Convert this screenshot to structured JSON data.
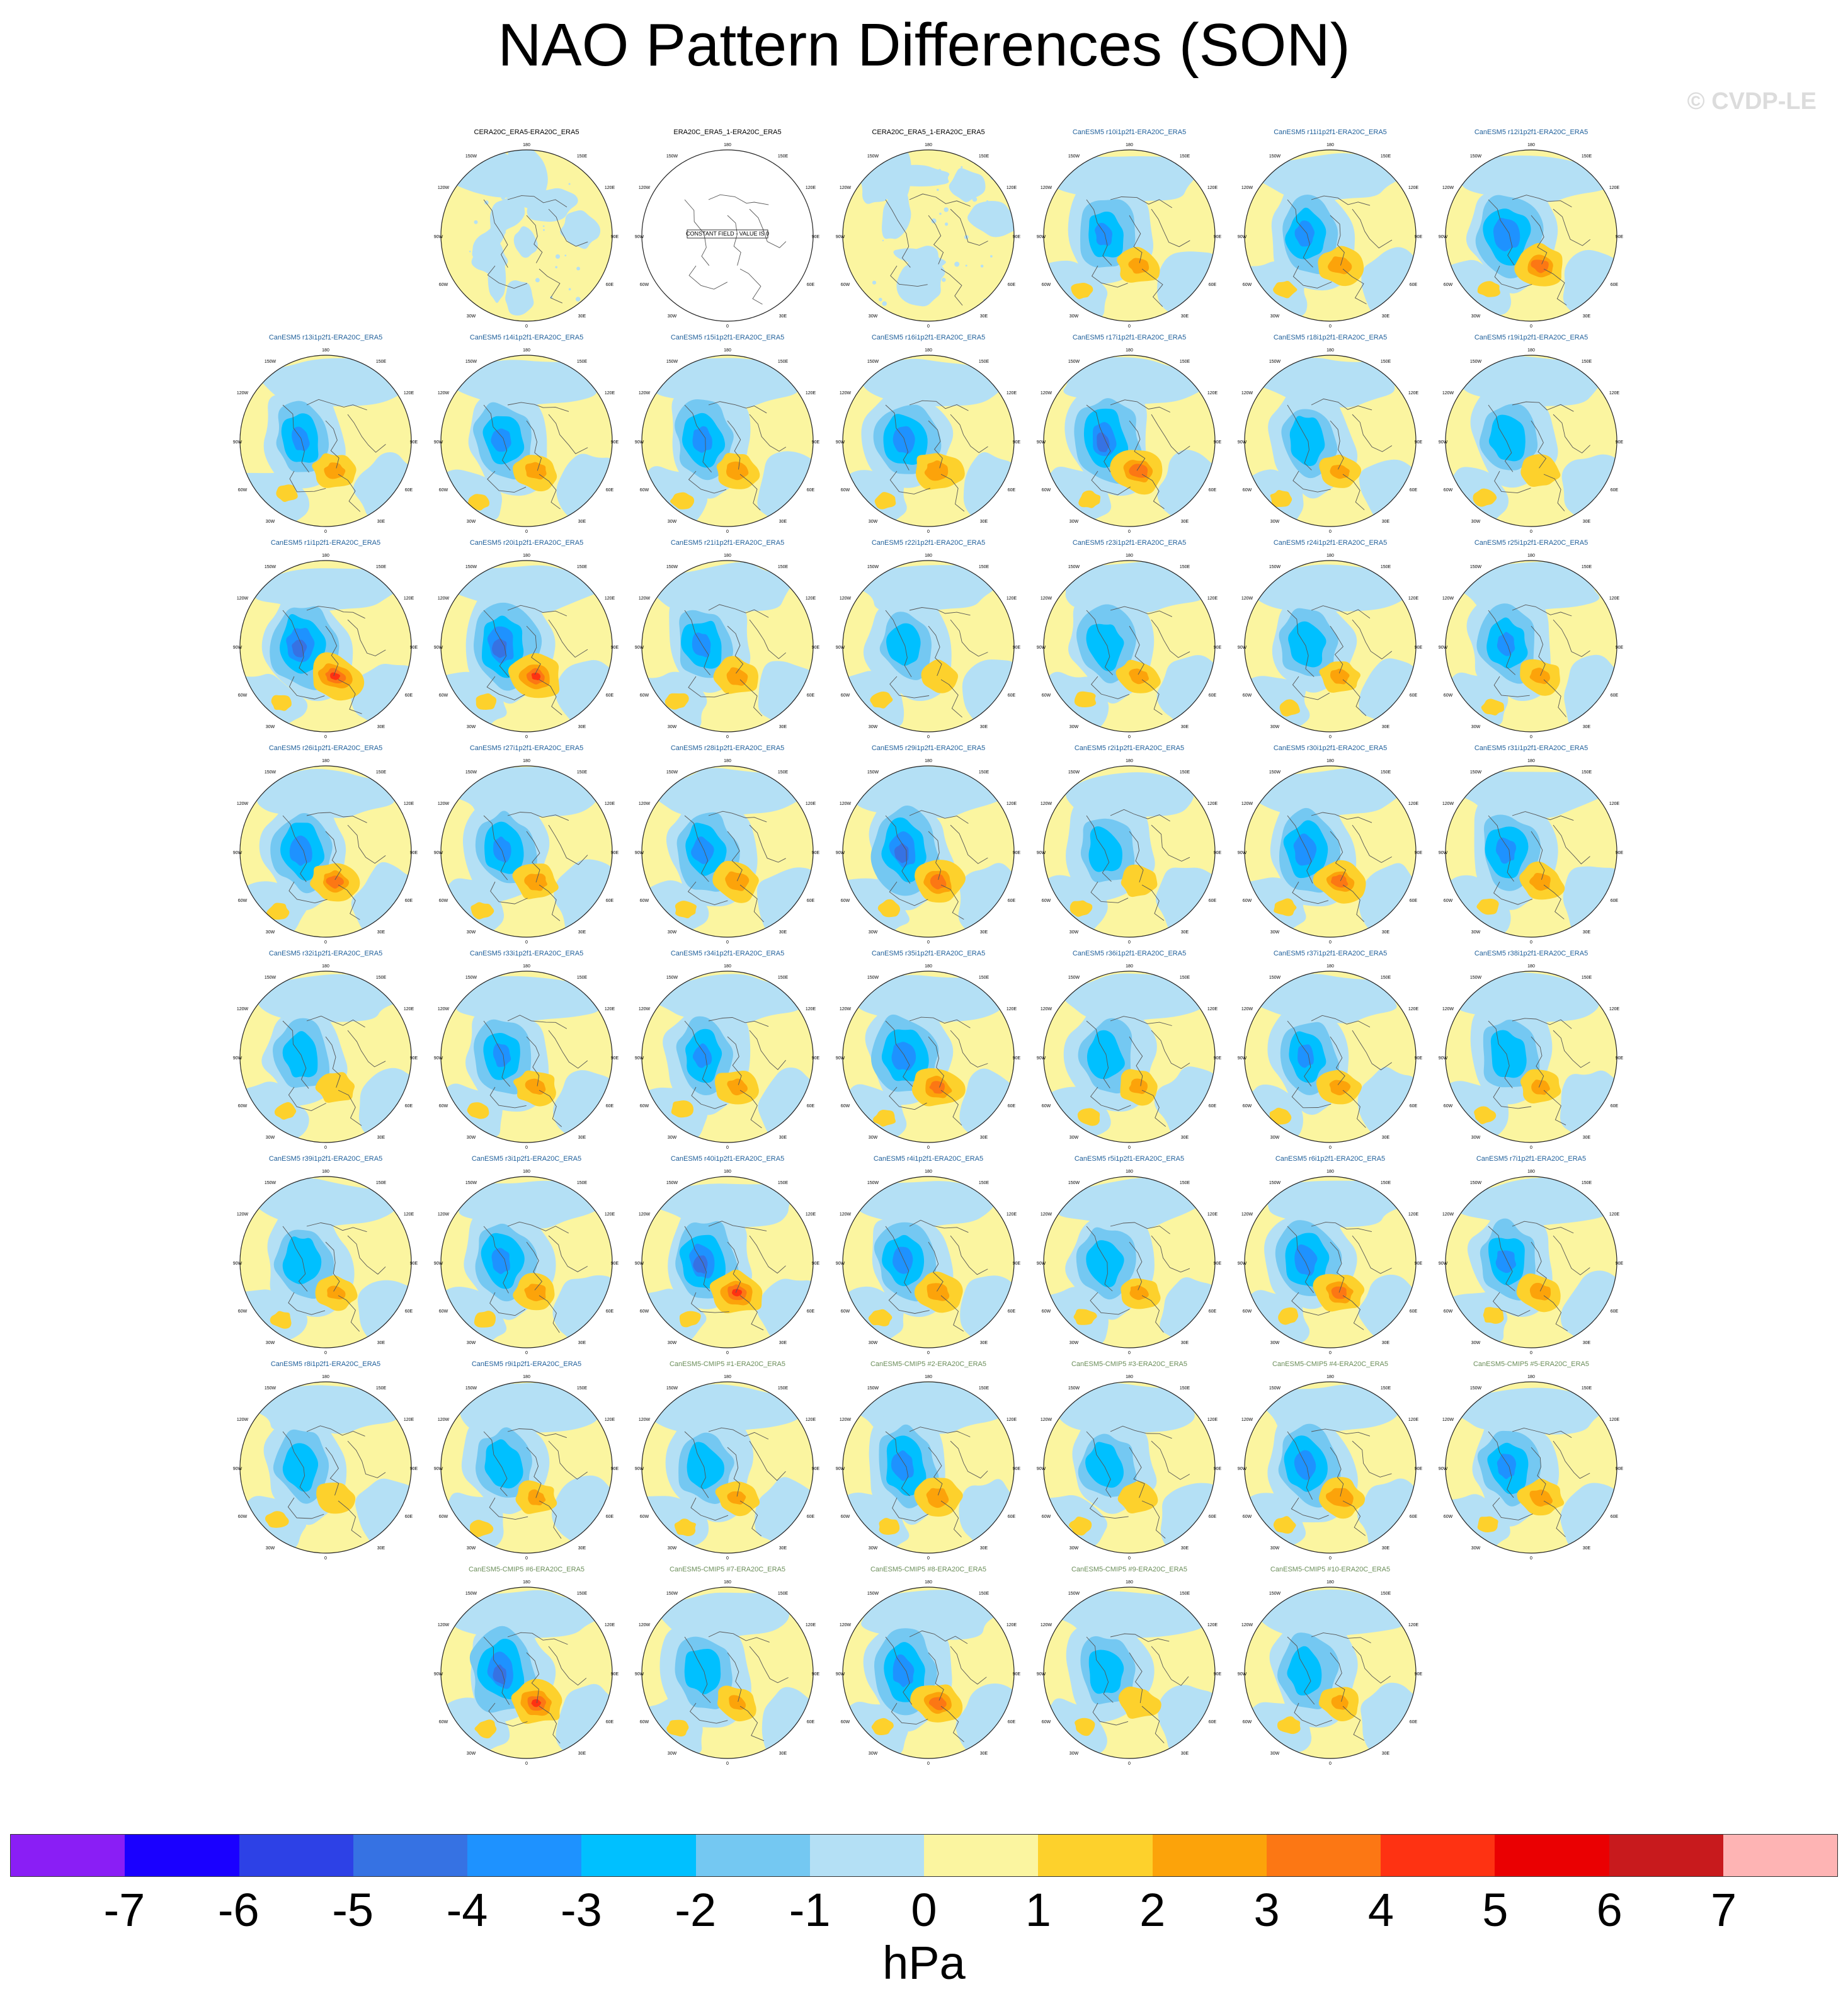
{
  "title": "NAO Pattern Differences (SON)",
  "watermark": "© CVDP-LE",
  "units": "hPa",
  "colorbar": {
    "labels": [
      "-7",
      "-6",
      "-5",
      "-4",
      "-3",
      "-2",
      "-1",
      "0",
      "1",
      "2",
      "3",
      "4",
      "5",
      "6",
      "7"
    ],
    "colors": [
      "#8a1ef5",
      "#1a00ff",
      "#2d41e6",
      "#3672e3",
      "#1e92ff",
      "#00c0ff",
      "#74c8f2",
      "#b4e0f5",
      "#fbf5a0",
      "#fdd12c",
      "#fca30a",
      "#fc7714",
      "#fe3212",
      "#ea0002",
      "#c81a1d",
      "#feb4b4"
    ]
  },
  "map_labels": {
    "top": "180",
    "tl": "150W",
    "tr": "150E",
    "ul": "120W",
    "ur": "120E",
    "ml": "90W",
    "mr": "90E",
    "ll": "60W",
    "lr": "60E",
    "bl": "30W",
    "br": "30E",
    "bottom": "0"
  },
  "constant_field_note": "CONSTANT FIELD - VALUE IS 0",
  "panels": [
    {
      "title": "CERA20C_ERA5-ERA20C_ERA5",
      "color": "#000000",
      "type": "weak",
      "k": 0.1
    },
    {
      "title": "ERA20C_ERA5_1-ERA20C_ERA5",
      "color": "#000000",
      "type": "constant",
      "k": 0
    },
    {
      "title": "CERA20C_ERA5_1-ERA20C_ERA5",
      "color": "#000000",
      "type": "weak",
      "k": 0.1
    },
    {
      "title": "CanESM5 r10i1p2f1-ERA20C_ERA5",
      "color": "#1f5f9a",
      "type": "nao",
      "k": 0.65
    },
    {
      "title": "CanESM5 r11i1p2f1-ERA20C_ERA5",
      "color": "#1f5f9a",
      "type": "nao",
      "k": 0.7
    },
    {
      "title": "CanESM5 r12i1p2f1-ERA20C_ERA5",
      "color": "#1f5f9a",
      "type": "nao",
      "k": 0.9
    },
    {
      "title": "CanESM5 r13i1p2f1-ERA20C_ERA5",
      "color": "#1f5f9a",
      "type": "nao",
      "k": 0.65
    },
    {
      "title": "CanESM5 r14i1p2f1-ERA20C_ERA5",
      "color": "#1f5f9a",
      "type": "nao",
      "k": 0.7
    },
    {
      "title": "CanESM5 r15i1p2f1-ERA20C_ERA5",
      "color": "#1f5f9a",
      "type": "nao",
      "k": 0.7
    },
    {
      "title": "CanESM5 r16i1p2f1-ERA20C_ERA5",
      "color": "#1f5f9a",
      "type": "nao",
      "k": 0.8
    },
    {
      "title": "CanESM5 r17i1p2f1-ERA20C_ERA5",
      "color": "#1f5f9a",
      "type": "nao",
      "k": 0.95
    },
    {
      "title": "CanESM5 r18i1p2f1-ERA20C_ERA5",
      "color": "#1f5f9a",
      "type": "nao",
      "k": 0.6
    },
    {
      "title": "CanESM5 r19i1p2f1-ERA20C_ERA5",
      "color": "#1f5f9a",
      "type": "nao",
      "k": 0.55
    },
    {
      "title": "CanESM5 r1i1p2f1-ERA20C_ERA5",
      "color": "#1f5f9a",
      "type": "nao",
      "k": 1.0
    },
    {
      "title": "CanESM5 r20i1p2f1-ERA20C_ERA5",
      "color": "#1f5f9a",
      "type": "nao",
      "k": 1.0
    },
    {
      "title": "CanESM5 r21i1p2f1-ERA20C_ERA5",
      "color": "#1f5f9a",
      "type": "nao",
      "k": 0.7
    },
    {
      "title": "CanESM5 r22i1p2f1-ERA20C_ERA5",
      "color": "#1f5f9a",
      "type": "nao",
      "k": 0.45
    },
    {
      "title": "CanESM5 r23i1p2f1-ERA20C_ERA5",
      "color": "#1f5f9a",
      "type": "nao",
      "k": 0.6
    },
    {
      "title": "CanESM5 r24i1p2f1-ERA20C_ERA5",
      "color": "#1f5f9a",
      "type": "nao",
      "k": 0.6
    },
    {
      "title": "CanESM5 r25i1p2f1-ERA20C_ERA5",
      "color": "#1f5f9a",
      "type": "nao",
      "k": 0.65
    },
    {
      "title": "CanESM5 r26i1p2f1-ERA20C_ERA5",
      "color": "#1f5f9a",
      "type": "nao",
      "k": 0.85
    },
    {
      "title": "CanESM5 r27i1p2f1-ERA20C_ERA5",
      "color": "#1f5f9a",
      "type": "nao",
      "k": 0.7
    },
    {
      "title": "CanESM5 r28i1p2f1-ERA20C_ERA5",
      "color": "#1f5f9a",
      "type": "nao",
      "k": 0.8
    },
    {
      "title": "CanESM5 r29i1p2f1-ERA20C_ERA5",
      "color": "#1f5f9a",
      "type": "nao",
      "k": 0.95
    },
    {
      "title": "CanESM5 r2i1p2f1-ERA20C_ERA5",
      "color": "#1f5f9a",
      "type": "nao",
      "k": 0.5
    },
    {
      "title": "CanESM5 r30i1p2f1-ERA20C_ERA5",
      "color": "#1f5f9a",
      "type": "nao",
      "k": 0.85
    },
    {
      "title": "CanESM5 r31i1p2f1-ERA20C_ERA5",
      "color": "#1f5f9a",
      "type": "nao",
      "k": 0.7
    },
    {
      "title": "CanESM5 r32i1p2f1-ERA20C_ERA5",
      "color": "#1f5f9a",
      "type": "nao",
      "k": 0.55
    },
    {
      "title": "CanESM5 r33i1p2f1-ERA20C_ERA5",
      "color": "#1f5f9a",
      "type": "nao",
      "k": 0.65
    },
    {
      "title": "CanESM5 r34i1p2f1-ERA20C_ERA5",
      "color": "#1f5f9a",
      "type": "nao",
      "k": 0.65
    },
    {
      "title": "CanESM5 r35i1p2f1-ERA20C_ERA5",
      "color": "#1f5f9a",
      "type": "nao",
      "k": 0.85
    },
    {
      "title": "CanESM5 r36i1p2f1-ERA20C_ERA5",
      "color": "#1f5f9a",
      "type": "nao",
      "k": 0.6
    },
    {
      "title": "CanESM5 r37i1p2f1-ERA20C_ERA5",
      "color": "#1f5f9a",
      "type": "nao",
      "k": 0.65
    },
    {
      "title": "CanESM5 r38i1p2f1-ERA20C_ERA5",
      "color": "#1f5f9a",
      "type": "nao",
      "k": 0.6
    },
    {
      "title": "CanESM5 r39i1p2f1-ERA20C_ERA5",
      "color": "#1f5f9a",
      "type": "nao",
      "k": 0.6
    },
    {
      "title": "CanESM5 r3i1p2f1-ERA20C_ERA5",
      "color": "#1f5f9a",
      "type": "nao",
      "k": 0.7
    },
    {
      "title": "CanESM5 r40i1p2f1-ERA20C_ERA5",
      "color": "#1f5f9a",
      "type": "nao",
      "k": 1.0
    },
    {
      "title": "CanESM5 r4i1p2f1-ERA20C_ERA5",
      "color": "#1f5f9a",
      "type": "nao",
      "k": 0.75
    },
    {
      "title": "CanESM5 r5i1p2f1-ERA20C_ERA5",
      "color": "#1f5f9a",
      "type": "nao",
      "k": 0.6
    },
    {
      "title": "CanESM5 r6i1p2f1-ERA20C_ERA5",
      "color": "#1f5f9a",
      "type": "nao",
      "k": 0.85
    },
    {
      "title": "CanESM5 r7i1p2f1-ERA20C_ERA5",
      "color": "#1f5f9a",
      "type": "nao",
      "k": 0.7
    },
    {
      "title": "CanESM5 r8i1p2f1-ERA20C_ERA5",
      "color": "#1f5f9a",
      "type": "nao",
      "k": 0.55
    },
    {
      "title": "CanESM5 r9i1p2f1-ERA20C_ERA5",
      "color": "#1f5f9a",
      "type": "nao",
      "k": 0.6
    },
    {
      "title": "CanESM5-CMIP5 #1-ERA20C_ERA5",
      "color": "#6b8e5a",
      "type": "nao",
      "k": 0.6
    },
    {
      "title": "CanESM5-CMIP5 #2-ERA20C_ERA5",
      "color": "#6b8e5a",
      "type": "nao",
      "k": 0.8
    },
    {
      "title": "CanESM5-CMIP5 #3-ERA20C_ERA5",
      "color": "#6b8e5a",
      "type": "nao",
      "k": 0.55
    },
    {
      "title": "CanESM5-CMIP5 #4-ERA20C_ERA5",
      "color": "#6b8e5a",
      "type": "nao",
      "k": 0.8
    },
    {
      "title": "CanESM5-CMIP5 #5-ERA20C_ERA5",
      "color": "#6b8e5a",
      "type": "nao",
      "k": 0.7
    },
    {
      "title": "CanESM5-CMIP5 #6-ERA20C_ERA5",
      "color": "#6b8e5a",
      "type": "nao",
      "k": 1.0
    },
    {
      "title": "CanESM5-CMIP5 #7-ERA20C_ERA5",
      "color": "#6b8e5a",
      "type": "nao",
      "k": 0.6
    },
    {
      "title": "CanESM5-CMIP5 #8-ERA20C_ERA5",
      "color": "#6b8e5a",
      "type": "nao",
      "k": 0.85
    },
    {
      "title": "CanESM5-CMIP5 #9-ERA20C_ERA5",
      "color": "#6b8e5a",
      "type": "nao",
      "k": 0.55
    },
    {
      "title": "CanESM5-CMIP5 #10-ERA20C_ERA5",
      "color": "#6b8e5a",
      "type": "nao",
      "k": 0.6
    }
  ]
}
